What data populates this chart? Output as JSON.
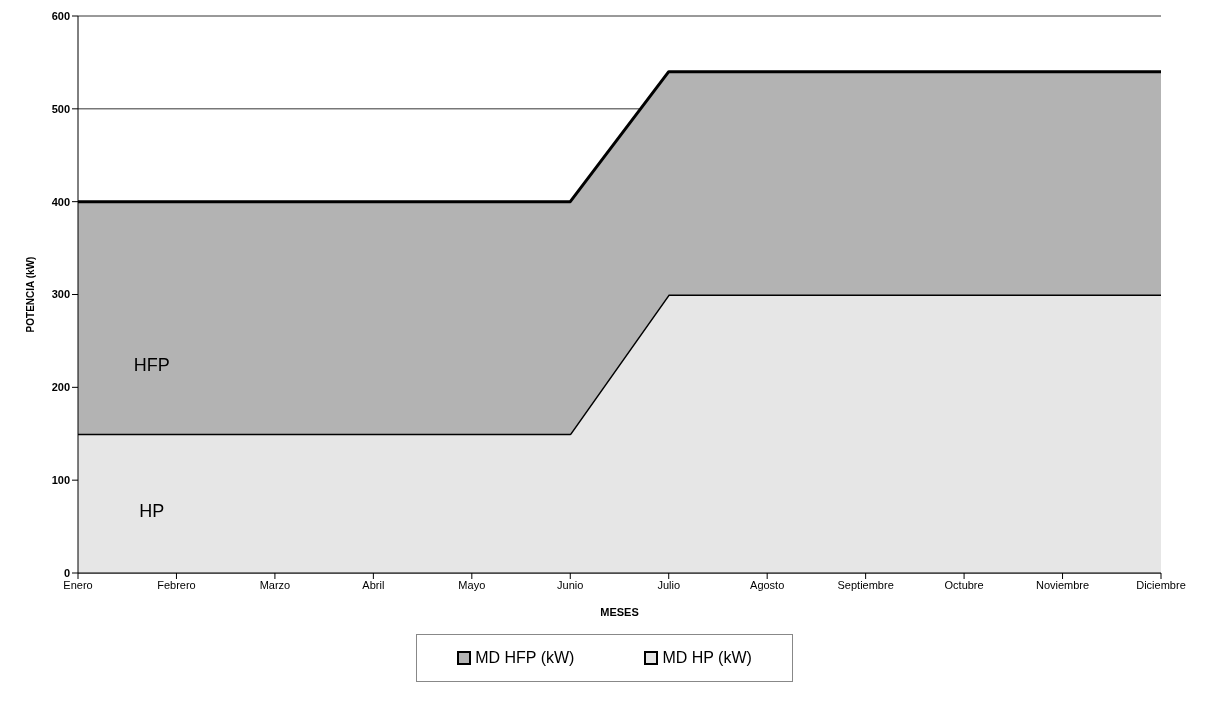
{
  "chart_data": {
    "type": "area",
    "stacked": true,
    "xlabel": "MESES",
    "ylabel": "POTENCIA (kW)",
    "categories": [
      "Enero",
      "Febrero",
      "Marzo",
      "Abril",
      "Mayo",
      "Junio",
      "Julio",
      "Agosto",
      "Septiembre",
      "Octubre",
      "Noviembre",
      "Diciembre"
    ],
    "series": [
      {
        "name": "MD HP (kW)",
        "color": "#e6e6e6",
        "values": [
          150,
          150,
          150,
          150,
          150,
          150,
          300,
          300,
          300,
          300,
          300,
          300
        ]
      },
      {
        "name": "MD HFP (kW)",
        "color": "#b3b3b3",
        "values": [
          250,
          250,
          250,
          250,
          250,
          250,
          240,
          240,
          240,
          240,
          240,
          240
        ]
      }
    ],
    "ylim": [
      0,
      600
    ],
    "yticks": [
      0,
      100,
      200,
      300,
      400,
      500,
      600
    ],
    "grid": "y",
    "legend": "bottom",
    "annotations": [
      "HFP",
      "HP"
    ]
  }
}
